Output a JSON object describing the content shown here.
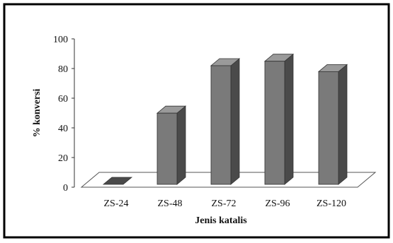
{
  "chart_data": {
    "type": "bar",
    "categories": [
      "ZS-24",
      "ZS-48",
      "ZS-72",
      "ZS-96",
      "ZS-120"
    ],
    "values": [
      0,
      48,
      80,
      83,
      76
    ],
    "title": "",
    "xlabel": "Jenis katalis",
    "ylabel": "% konversi",
    "ylim": [
      0,
      100
    ],
    "yticks": [
      "0",
      "20",
      "40",
      "60",
      "80",
      "100"
    ],
    "grid": false,
    "legend": "none",
    "style": "3d-column",
    "colors": {
      "bar_front": "#7a7a7a",
      "bar_side": "#4a4a4a",
      "bar_top": "#9a9a9a",
      "floor": "#ffffff",
      "frame": "#000000"
    }
  }
}
